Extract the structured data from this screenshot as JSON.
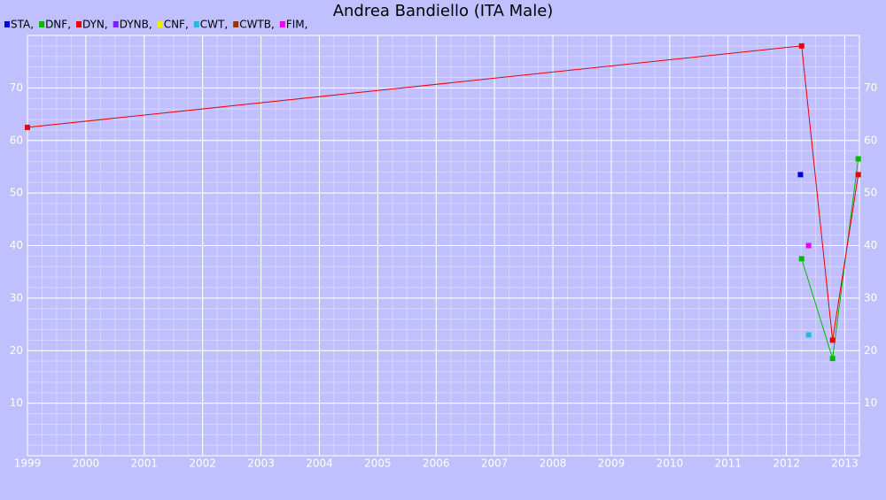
{
  "chart_data": {
    "type": "line",
    "title": "Andrea Bandiello (ITA Male)",
    "legend_separator": ",",
    "xlim": [
      1999,
      2013.25
    ],
    "xticks": [
      1999,
      2000,
      2001,
      2002,
      2003,
      2004,
      2005,
      2006,
      2007,
      2008,
      2009,
      2010,
      2011,
      2012,
      2013
    ],
    "ylim": [
      0,
      80
    ],
    "yticks": [
      10,
      20,
      30,
      40,
      50,
      60,
      70
    ],
    "grid": true,
    "series": [
      {
        "name": "STA",
        "color": "#0000dd",
        "x": [
          2012.24
        ],
        "values": [
          53.5
        ]
      },
      {
        "name": "DNF",
        "color": "#00bb00",
        "x": [
          2012.26,
          2012.79,
          2013.23
        ],
        "values": [
          37.5,
          18.5,
          56.5
        ]
      },
      {
        "name": "DYN",
        "color": "#ee0000",
        "x": [
          1999,
          2012.26,
          2012.79,
          2013.23
        ],
        "values": [
          62.5,
          78,
          22,
          53.5
        ]
      },
      {
        "name": "DYNB",
        "color": "#7722ee",
        "x": [],
        "values": []
      },
      {
        "name": "CNF",
        "color": "#eeee00",
        "x": [],
        "values": []
      },
      {
        "name": "CWT",
        "color": "#22bbdd",
        "x": [
          2012.38
        ],
        "values": [
          23
        ]
      },
      {
        "name": "CWTB",
        "color": "#993300",
        "x": [],
        "values": []
      },
      {
        "name": "FIM",
        "color": "#ee00ee",
        "x": [
          2012.38
        ],
        "values": [
          40
        ]
      }
    ]
  }
}
